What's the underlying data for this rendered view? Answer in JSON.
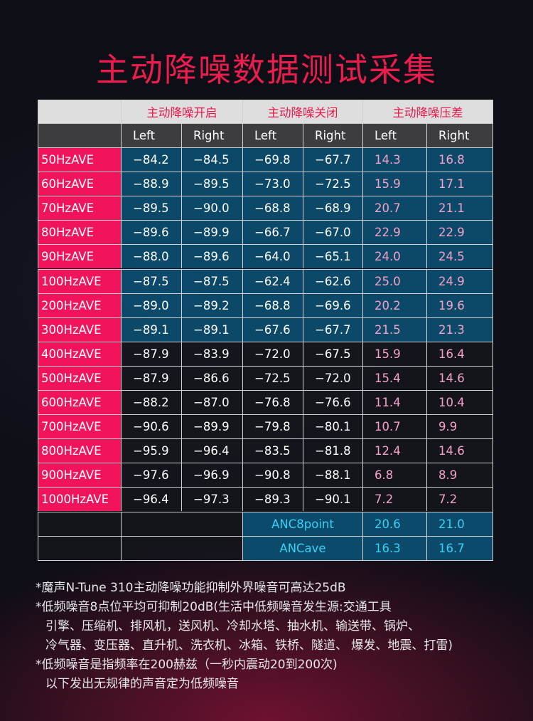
{
  "title": "主动降噪数据测试采集",
  "table": {
    "group_headers": [
      "主动降噪开启",
      "主动降噪关闭",
      "主动降噪压差"
    ],
    "sub_headers": [
      "Left",
      "Right",
      "Left",
      "Right",
      "Left",
      "Right"
    ],
    "rows": [
      [
        "50HzAVE",
        "−84.2",
        "−84.5",
        "−69.8",
        "−67.7",
        "14.3",
        "16.8"
      ],
      [
        "60HzAVE",
        "−88.9",
        "−89.5",
        "−73.0",
        "−72.5",
        "15.9",
        "17.1"
      ],
      [
        "70HzAVE",
        "−89.5",
        "−90.0",
        "−68.8",
        "−68.9",
        "20.7",
        "21.1"
      ],
      [
        "80HzAVE",
        "−89.6",
        "−89.9",
        "−66.7",
        "−67.0",
        "22.9",
        "22.9"
      ],
      [
        "90HzAVE",
        "−88.0",
        "−89.6",
        "−64.0",
        "−65.1",
        "24.0",
        "24.5"
      ],
      [
        "100HzAVE",
        "−87.5",
        "−87.5",
        "−62.4",
        "−62.6",
        "25.0",
        "24.9"
      ],
      [
        "200HzAVE",
        "−89.0",
        "−89.2",
        "−68.8",
        "−69.6",
        "20.2",
        "19.6"
      ],
      [
        "300HzAVE",
        "−89.1",
        "−89.1",
        "−67.6",
        "−67.7",
        "21.5",
        "21.3"
      ],
      [
        "400HzAVE",
        "−87.9",
        "−83.9",
        "−72.0",
        "−67.5",
        "15.9",
        "16.4"
      ],
      [
        "500HzAVE",
        "−87.9",
        "−86.6",
        "−72.5",
        "−72.0",
        "15.4",
        "14.6"
      ],
      [
        "600HzAVE",
        "−88.2",
        "−87.0",
        "−76.8",
        "−76.6",
        "11.4",
        "10.4"
      ],
      [
        "700HzAVE",
        "−90.6",
        "−89.9",
        "−79.8",
        "−80.1",
        "10.7",
        "9.9"
      ],
      [
        "800HzAVE",
        "−95.9",
        "−96.4",
        "−83.5",
        "−81.8",
        "12.4",
        "14.6"
      ],
      [
        "900HzAVE",
        "−97.6",
        "−96.9",
        "−90.8",
        "−88.1",
        "6.8",
        "8.9"
      ],
      [
        "1000HzAVE",
        "−96.4",
        "−97.3",
        "−89.3",
        "−90.1",
        "7.2",
        "7.2"
      ]
    ],
    "summary_rows": [
      [
        "ANC8point",
        "20.6",
        "21.0"
      ],
      [
        "ANCave",
        "16.3",
        "16.7"
      ]
    ]
  },
  "notes": [
    "*魔声N-Tune 310主动降噪功能抑制外界噪音可高达25dB",
    "*低频噪音8点位平均可抑制20dB(生活中低频噪音发生源:交通工具",
    "引擎、压缩机、排风机，送风机、冷却水塔、抽水机、输送带、锅炉、",
    "冷气器、变压器、直升机、洗衣机、冰箱、铁桥、隧道、 爆发、地震、打雷)",
    "*低频噪音是指频率在200赫兹（一秒内震动20到200次)",
    "以下发出无规律的声音定为低频噪音"
  ]
}
